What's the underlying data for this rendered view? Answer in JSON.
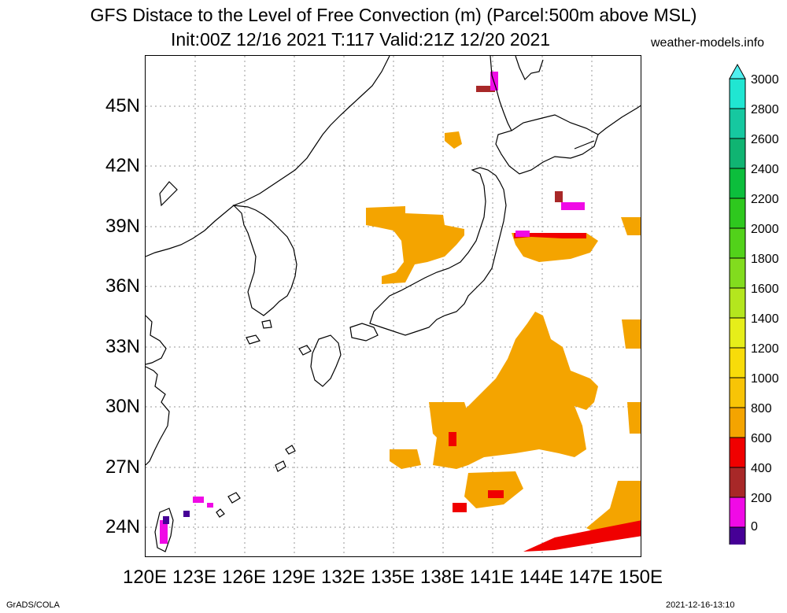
{
  "header": {
    "title_line1": "GFS Distace to the Level of Free Convection (m) (Parcel:500m above MSL)",
    "title_line2": "Init:00Z 12/16 2021 T:117 Valid:21Z 12/20 2021",
    "website": "weather-models.info"
  },
  "map": {
    "lat_labels": [
      "45N",
      "42N",
      "39N",
      "36N",
      "33N",
      "30N",
      "27N",
      "24N"
    ],
    "lon_labels": [
      "120E",
      "123E",
      "126E",
      "129E",
      "132E",
      "135E",
      "138E",
      "141E",
      "144E",
      "147E",
      "150E"
    ],
    "gridlines": true
  },
  "colorbar": {
    "labels": [
      "3000",
      "2800",
      "2600",
      "2400",
      "2200",
      "2000",
      "1800",
      "1600",
      "1400",
      "1200",
      "1000",
      "800",
      "600",
      "400",
      "200",
      "0"
    ],
    "colors": [
      "#20e6d2",
      "#16c8a0",
      "#10b472",
      "#0cbe3c",
      "#2ec81e",
      "#52d21a",
      "#82dc1e",
      "#b4e61e",
      "#e6ee1a",
      "#f8dc0a",
      "#f8c406",
      "#f4a400",
      "#f00000",
      "#a82828",
      "#f00ae6",
      "#460096"
    ],
    "top_arrow_color": "#50f0f0",
    "bottom_arrow_color": "#3c0064"
  },
  "footer": {
    "left": "GrADS/COLA",
    "right": "2021-12-16-13:10"
  }
}
